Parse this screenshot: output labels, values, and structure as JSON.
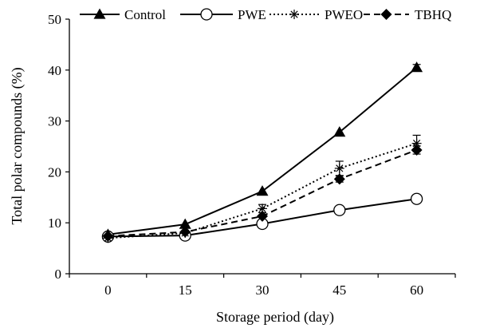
{
  "chart_data": {
    "type": "line",
    "xlabel": "Storage period (day)",
    "ylabel": "Total polar compounds (%)",
    "x": [
      0,
      15,
      30,
      45,
      60
    ],
    "xticks": [
      "0",
      "15",
      "30",
      "45",
      "60"
    ],
    "ylim": [
      0,
      50
    ],
    "yticks": [
      "0",
      "10",
      "20",
      "30",
      "40",
      "50"
    ],
    "grid": false,
    "legend": "top",
    "series": [
      {
        "name": "Control",
        "marker": "filled-triangle",
        "dash": "solid",
        "values": [
          7.7,
          9.7,
          16.2,
          27.8,
          40.5
        ],
        "err": [
          0.3,
          0.3,
          0.4,
          0.5,
          0.6
        ]
      },
      {
        "name": "PWE",
        "marker": "open-circle",
        "dash": "solid",
        "values": [
          7.3,
          7.5,
          9.8,
          12.5,
          14.7
        ],
        "err": [
          0.3,
          0.3,
          0.3,
          0.3,
          0.4
        ]
      },
      {
        "name": "PWEO",
        "marker": "asterisk",
        "dash": "dotted",
        "values": [
          7.0,
          8.0,
          12.8,
          20.7,
          25.6
        ],
        "err": [
          0.3,
          0.3,
          0.8,
          1.4,
          1.6
        ]
      },
      {
        "name": "TBHQ",
        "marker": "filled-diamond",
        "dash": "dashed",
        "values": [
          7.4,
          8.2,
          11.3,
          18.6,
          24.3
        ],
        "err": [
          0.3,
          0.3,
          0.5,
          0.6,
          0.8
        ]
      }
    ]
  }
}
